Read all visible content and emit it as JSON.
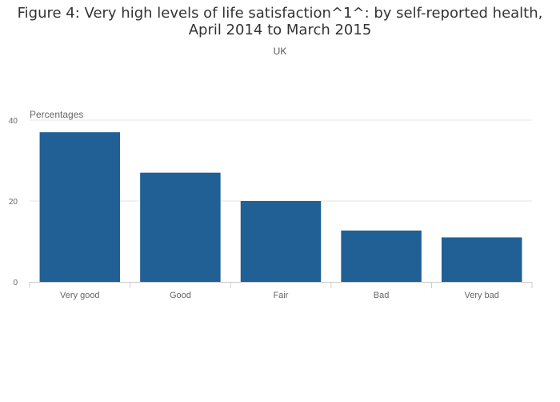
{
  "chart_data": {
    "type": "bar",
    "title_lines": [
      "Figure 4: Very high levels of life satisfaction^1^: by self-reported health,",
      "April 2014 to March 2015"
    ],
    "subtitle": "UK",
    "ylabel": "Percentages",
    "xlabel": "",
    "categories": [
      "Very good",
      "Good",
      "Fair",
      "Bad",
      "Very bad"
    ],
    "values": [
      37,
      27,
      20,
      12.7,
      11
    ],
    "ylim": [
      0,
      40
    ],
    "yticks": [
      0,
      20,
      40
    ],
    "grid": true,
    "legend": "none",
    "bar_color": "#206095"
  }
}
